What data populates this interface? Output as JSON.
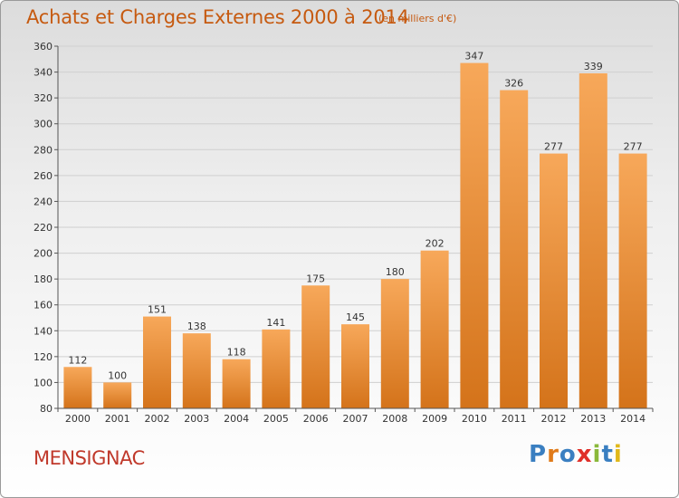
{
  "title": "Achats et Charges Externes 2000 à 2014",
  "subtitle": "(en milliers d'€)",
  "commune": "MENSIGNAC",
  "logo": {
    "text": "Proxiti",
    "letters": [
      {
        "ch": "P",
        "color": "#3a7fc1"
      },
      {
        "ch": "r",
        "color": "#e07b1a"
      },
      {
        "ch": "o",
        "color": "#3a7fc1"
      },
      {
        "ch": "x",
        "color": "#e0302a"
      },
      {
        "ch": "i",
        "color": "#8ab83a"
      },
      {
        "ch": "t",
        "color": "#3a7fc1"
      },
      {
        "ch": "i",
        "color": "#e0b81a"
      }
    ]
  },
  "colors": {
    "title": "#c65a10",
    "bar_light": "#f7a85a",
    "bar_dark": "#d4731a",
    "grid": "#cfcfcf"
  },
  "chart_data": {
    "type": "bar",
    "categories": [
      "2000",
      "2001",
      "2002",
      "2003",
      "2004",
      "2005",
      "2006",
      "2007",
      "2008",
      "2009",
      "2010",
      "2011",
      "2012",
      "2013",
      "2014"
    ],
    "values": [
      112,
      100,
      151,
      138,
      118,
      141,
      175,
      145,
      180,
      202,
      347,
      326,
      277,
      339,
      277
    ],
    "ylim": [
      80,
      360
    ],
    "yticks": [
      80,
      100,
      120,
      140,
      160,
      180,
      200,
      220,
      240,
      260,
      280,
      300,
      320,
      340,
      360
    ],
    "grid": true
  }
}
